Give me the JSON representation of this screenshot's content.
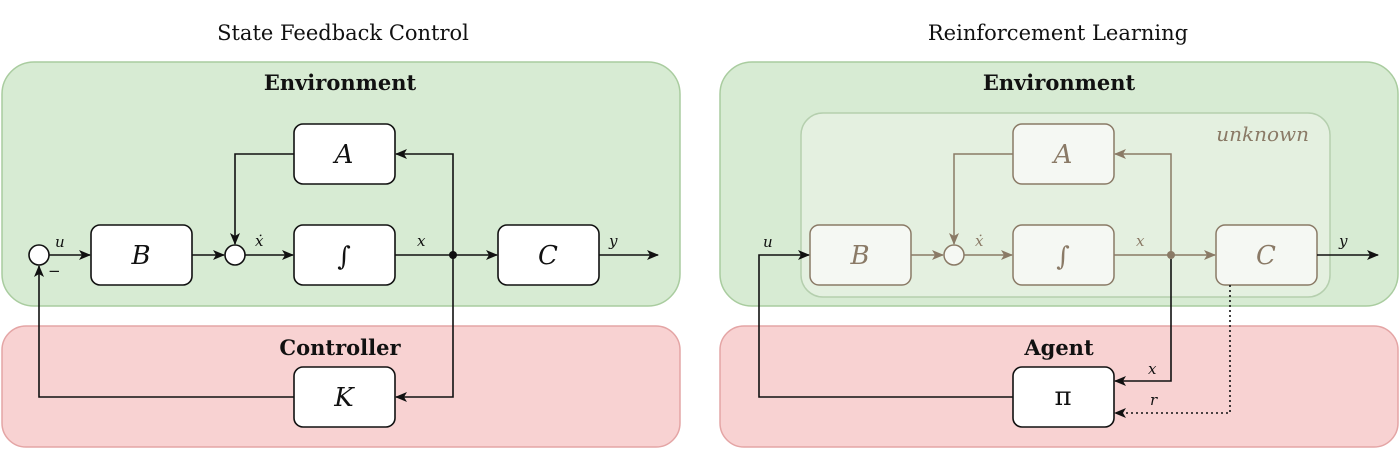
{
  "left": {
    "title": "State Feedback Control",
    "environment_label": "Environment",
    "controller_label": "Controller",
    "blocks": {
      "A": "A",
      "B": "B",
      "integrator": "∫",
      "C": "C",
      "K": "K"
    },
    "signals": {
      "u": "u",
      "minus": "−",
      "x_dot": "ẋ",
      "x": "x",
      "y": "y"
    }
  },
  "right": {
    "title": "Reinforcement Learning",
    "environment_label": "Environment",
    "agent_label": "Agent",
    "unknown_label": "unknown",
    "blocks": {
      "A": "A",
      "B": "B",
      "integrator": "∫",
      "C": "C",
      "pi": "π"
    },
    "signals": {
      "u": "u",
      "x_dot": "ẋ",
      "x": "x",
      "y": "y",
      "x_agent": "x",
      "r": "r"
    }
  },
  "colors": {
    "environment_fill": "#d7ebd3",
    "environment_stroke": "#a9cc9f",
    "controller_fill": "#f8d2d2",
    "controller_stroke": "#e4a5a5",
    "unknown_fill": "#e4f0e0",
    "unknown_stroke": "#b5cfae",
    "faded_line": "#8a7a66"
  }
}
